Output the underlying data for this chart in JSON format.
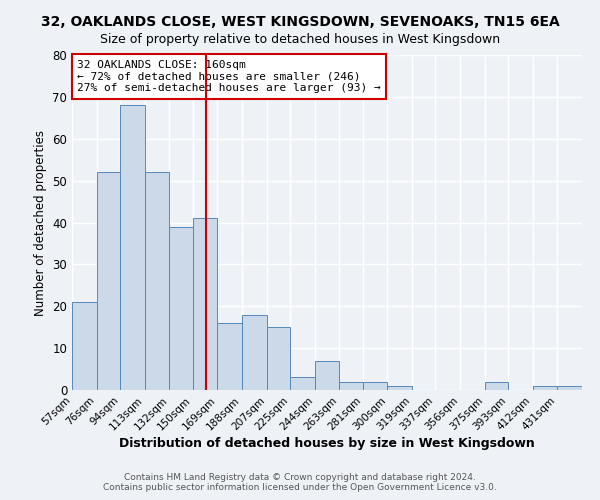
{
  "title": "32, OAKLANDS CLOSE, WEST KINGSDOWN, SEVENOAKS, TN15 6EA",
  "subtitle": "Size of property relative to detached houses in West Kingsdown",
  "xlabel": "Distribution of detached houses by size in West Kingsdown",
  "ylabel": "Number of detached properties",
  "bar_values": [
    21,
    52,
    68,
    52,
    39,
    41,
    16,
    18,
    15,
    3,
    7,
    2,
    2,
    1,
    0,
    0,
    0,
    2,
    0,
    1,
    1
  ],
  "bin_labels": [
    "57sqm",
    "76sqm",
    "94sqm",
    "113sqm",
    "132sqm",
    "150sqm",
    "169sqm",
    "188sqm",
    "207sqm",
    "225sqm",
    "244sqm",
    "263sqm",
    "281sqm",
    "300sqm",
    "319sqm",
    "337sqm",
    "356sqm",
    "375sqm",
    "393sqm",
    "412sqm",
    "431sqm"
  ],
  "bin_edges": [
    57,
    76,
    94,
    113,
    132,
    150,
    169,
    188,
    207,
    225,
    244,
    263,
    281,
    300,
    319,
    337,
    356,
    375,
    393,
    412,
    431
  ],
  "property_size": 160,
  "property_line_color": "#cc0000",
  "bar_facecolor": "#ccd9e8",
  "bar_edgecolor": "#5588bb",
  "ylim": [
    0,
    80
  ],
  "yticks": [
    0,
    10,
    20,
    30,
    40,
    50,
    60,
    70,
    80
  ],
  "annotation_line1": "32 OAKLANDS CLOSE: 160sqm",
  "annotation_line2": "← 72% of detached houses are smaller (246)",
  "annotation_line3": "27% of semi-detached houses are larger (93) →",
  "annotation_box_edgecolor": "#cc0000",
  "annotation_box_facecolor": "#ffffff",
  "footer1": "Contains HM Land Registry data © Crown copyright and database right 2024.",
  "footer2": "Contains public sector information licensed under the Open Government Licence v3.0.",
  "bg_color": "#eef2f7",
  "grid_color": "#ffffff",
  "title_fontsize": 10,
  "subtitle_fontsize": 9,
  "axis_bg": "#eef2f7"
}
